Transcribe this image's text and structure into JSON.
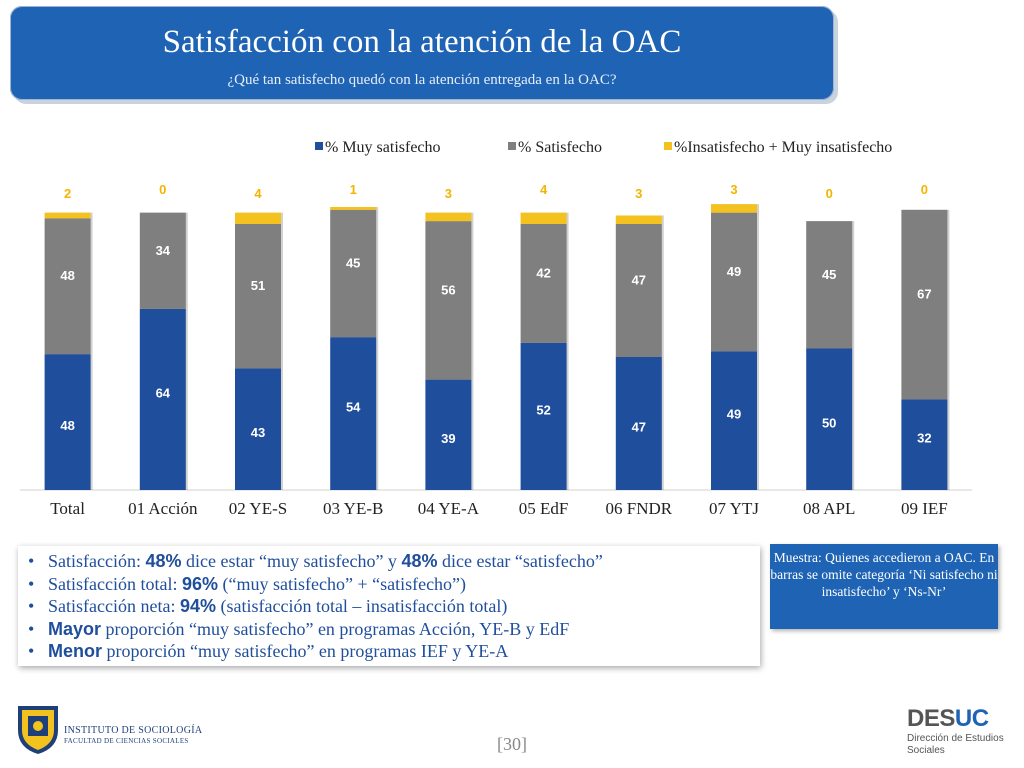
{
  "header": {
    "title": "Satisfacción con la atención de la OAC",
    "subtitle": "¿Qué tan satisfecho quedó con la atención entregada en la OAC?"
  },
  "colors": {
    "muy": "#1F4E9C",
    "sat": "#7F7F7F",
    "insat": "#F4C21F",
    "banner": "#1F63B4"
  },
  "chart_data": {
    "type": "bar",
    "stacked": true,
    "categories": [
      "Total",
      "01 Acción",
      "02 YE-S",
      "03 YE-B",
      "04 YE-A",
      "05 EdF",
      "06 FNDR",
      "07 YTJ",
      "08 APL",
      "09 IEF"
    ],
    "series": [
      {
        "name": "% Muy satisfecho",
        "color": "#1F4E9C",
        "values": [
          48,
          64,
          43,
          54,
          39,
          52,
          47,
          49,
          50,
          32
        ]
      },
      {
        "name": "% Satisfecho",
        "color": "#7F7F7F",
        "values": [
          48,
          34,
          51,
          45,
          56,
          42,
          47,
          49,
          45,
          67
        ]
      },
      {
        "name": "%Insatisfecho + Muy insatisfecho",
        "color": "#F4C21F",
        "values": [
          2,
          0,
          4,
          1,
          3,
          4,
          3,
          3,
          0,
          0
        ]
      }
    ],
    "legend": "top",
    "ylim": [
      0,
      100
    ]
  },
  "notes": [
    {
      "pre": "Satisfacción: ",
      "b1": "48%",
      "mid": " dice estar “muy satisfecho” y ",
      "b2": "48%",
      "post": " dice estar “satisfecho”"
    },
    {
      "pre": "Satisfacción total: ",
      "b1": "96%",
      "mid": " (“muy satisfecho” + “satisfecho”)",
      "b2": "",
      "post": ""
    },
    {
      "pre": "Satisfacción neta: ",
      "b1": "94%",
      "mid": " (satisfacción total – insatisfacción total)",
      "b2": "",
      "post": ""
    },
    {
      "pre": "",
      "b1": "Mayor",
      "mid": " proporción “muy satisfecho” en programas Acción, YE-B y EdF",
      "b2": "",
      "post": ""
    },
    {
      "pre": "",
      "b1": "Menor",
      "mid": " proporción “muy satisfecho” en programas IEF y YE-A",
      "b2": "",
      "post": ""
    }
  ],
  "sample_note": "Muestra: Quienes accedieron a OAC. En barras se omite categoría ‘Ni satisfecho ni insatisfecho’ y ‘Ns-Nr’",
  "footer": {
    "institute": "INSTITUTO DE SOCIOLOGÍA",
    "faculty": "FACULTAD DE CIENCIAS SOCIALES",
    "page": "[30]",
    "desuc_a": "DES",
    "desuc_b": "UC",
    "desuc_sub1": "Dirección de Estudios",
    "desuc_sub2": "Sociales"
  }
}
